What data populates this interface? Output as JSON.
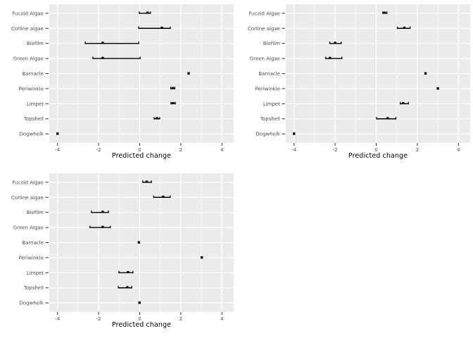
{
  "figure": {
    "background": "#FFFFFF",
    "panel_bg": "#EBEBEB",
    "grid_color": "#FFFFFF",
    "tick_color": "#333333",
    "axis_text_color": "#4D4D4D",
    "axis_title_color": "#000000",
    "data_color": "#000000"
  },
  "chart_data": [
    {
      "type": "scatter",
      "subtype": "dot-with-horizontal-errorbar",
      "position": "top-left",
      "title": "",
      "xlabel": "Predicted change",
      "ylabel": "",
      "grid": true,
      "x_ticks": [
        -4,
        -2,
        0,
        2,
        4
      ],
      "x_minor_ticks": [
        -3,
        -1,
        1,
        3
      ],
      "xlim": [
        -4.4,
        4.57
      ],
      "categories": [
        "Fucoid Algae",
        "Corline algae",
        "Biofilm",
        "Green Algae",
        "Barnacle",
        "Periwinkle",
        "Limpet",
        "Topshell",
        "Dogwhelk"
      ],
      "points": [
        {
          "category": "Fucoid Algae",
          "estimate": 0.38,
          "low": -0.02,
          "high": 0.52
        },
        {
          "category": "Corline algae",
          "estimate": 1.08,
          "low": -0.05,
          "high": 1.49
        },
        {
          "category": "Biofilm",
          "estimate": -1.8,
          "low": -2.65,
          "high": -0.05
        },
        {
          "category": "Green Algae",
          "estimate": -1.8,
          "low": -2.28,
          "high": 0.02
        },
        {
          "category": "Barnacle",
          "estimate": 2.38,
          "low": null,
          "high": null
        },
        {
          "category": "Periwinkle",
          "estimate": 1.61,
          "low": 1.51,
          "high": 1.71
        },
        {
          "category": "Limpet",
          "estimate": 1.62,
          "low": 1.52,
          "high": 1.73
        },
        {
          "category": "Topshell",
          "estimate": 0.84,
          "low": 0.7,
          "high": 0.97
        },
        {
          "category": "Dogwhelk",
          "estimate": -4.0,
          "low": null,
          "high": null
        }
      ]
    },
    {
      "type": "scatter",
      "subtype": "dot-with-horizontal-errorbar",
      "position": "top-right",
      "title": "",
      "xlabel": "Predicted change",
      "ylabel": "",
      "grid": true,
      "x_ticks": [
        -4,
        -2,
        0,
        2,
        4
      ],
      "x_minor_ticks": [
        -3,
        -1,
        1,
        3
      ],
      "xlim": [
        -4.4,
        4.57
      ],
      "categories": [
        "Fucoid Algae",
        "Corline algae",
        "Biofilm",
        "Green Algae",
        "Barnacle",
        "Periwinkle",
        "Limpet",
        "Topshell",
        "Dogwhelk"
      ],
      "points": [
        {
          "category": "Fucoid Algae",
          "estimate": 0.41,
          "low": 0.32,
          "high": 0.52
        },
        {
          "category": "Corline algae",
          "estimate": 1.37,
          "low": 1.03,
          "high": 1.65
        },
        {
          "category": "Biofilm",
          "estimate": -2.0,
          "low": -2.26,
          "high": -1.7
        },
        {
          "category": "Green Algae",
          "estimate": -2.25,
          "low": -2.46,
          "high": -1.67
        },
        {
          "category": "Barnacle",
          "estimate": 2.4,
          "low": null,
          "high": null
        },
        {
          "category": "Periwinkle",
          "estimate": 3.0,
          "low": null,
          "high": null
        },
        {
          "category": "Limpet",
          "estimate": 1.31,
          "low": 1.17,
          "high": 1.57
        },
        {
          "category": "Topshell",
          "estimate": 0.56,
          "low": 0.02,
          "high": 0.96
        },
        {
          "category": "Dogwhelk",
          "estimate": -4.0,
          "low": null,
          "high": null
        }
      ]
    },
    {
      "type": "scatter",
      "subtype": "dot-with-horizontal-errorbar",
      "position": "bottom-left",
      "title": "",
      "xlabel": "Predicted change",
      "ylabel": "",
      "grid": true,
      "x_ticks": [
        -4,
        -2,
        0,
        2,
        4
      ],
      "x_minor_ticks": [
        -3,
        -1,
        1,
        3
      ],
      "xlim": [
        -4.4,
        4.57
      ],
      "categories": [
        "Fucoid Algae",
        "Corline algae",
        "Biofilm",
        "Green Algae",
        "Barnacle",
        "Periwinkle",
        "Limpet",
        "Topshell",
        "Dogwhelk"
      ],
      "points": [
        {
          "category": "Fucoid Algae",
          "estimate": 0.34,
          "low": 0.15,
          "high": 0.57
        },
        {
          "category": "Corline algae",
          "estimate": 1.14,
          "low": 0.68,
          "high": 1.48
        },
        {
          "category": "Biofilm",
          "estimate": -1.8,
          "low": -2.35,
          "high": -1.52
        },
        {
          "category": "Green Algae",
          "estimate": -1.8,
          "low": -2.42,
          "high": -1.43
        },
        {
          "category": "Barnacle",
          "estimate": -0.04,
          "low": null,
          "high": null
        },
        {
          "category": "Periwinkle",
          "estimate": 3.02,
          "low": null,
          "high": null
        },
        {
          "category": "Limpet",
          "estimate": -0.57,
          "low": -1.01,
          "high": -0.33
        },
        {
          "category": "Topshell",
          "estimate": -0.6,
          "low": -1.04,
          "high": -0.39
        },
        {
          "category": "Dogwhelk",
          "estimate": -0.01,
          "low": null,
          "high": null
        }
      ]
    }
  ]
}
